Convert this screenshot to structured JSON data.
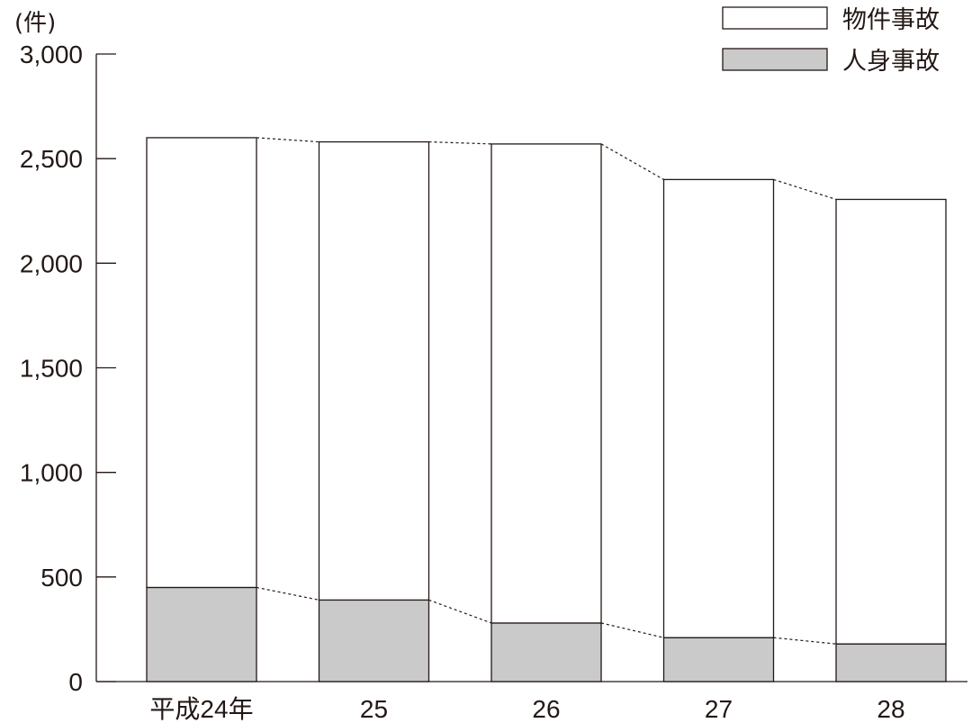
{
  "chart_data": {
    "type": "bar",
    "stacked": true,
    "unit_label": "(件)",
    "categories": [
      "平成24年",
      "25",
      "26",
      "27",
      "28"
    ],
    "series": [
      {
        "name": "人身事故",
        "values": [
          450,
          390,
          280,
          210,
          180
        ],
        "color": "#c9cac9"
      },
      {
        "name": "物件事故",
        "values": [
          2150,
          2190,
          2290,
          2190,
          2125
        ],
        "color": "#ffffff"
      }
    ],
    "totals": [
      2600,
      2580,
      2570,
      2400,
      2305
    ],
    "ylim": [
      0,
      3000
    ],
    "yticks": [
      0,
      500,
      1000,
      1500,
      2000,
      2500,
      3000
    ],
    "ytick_labels": [
      "0",
      "500",
      "1,000",
      "1,500",
      "2,000",
      "2,500",
      "3,000"
    ],
    "legend_position": "top-right",
    "legend": [
      {
        "label": "物件事故",
        "color": "#ffffff"
      },
      {
        "label": "人身事故",
        "color": "#c9cac9"
      }
    ],
    "grid": false,
    "connector_lines": "dashed",
    "xlabel": "",
    "ylabel": ""
  }
}
